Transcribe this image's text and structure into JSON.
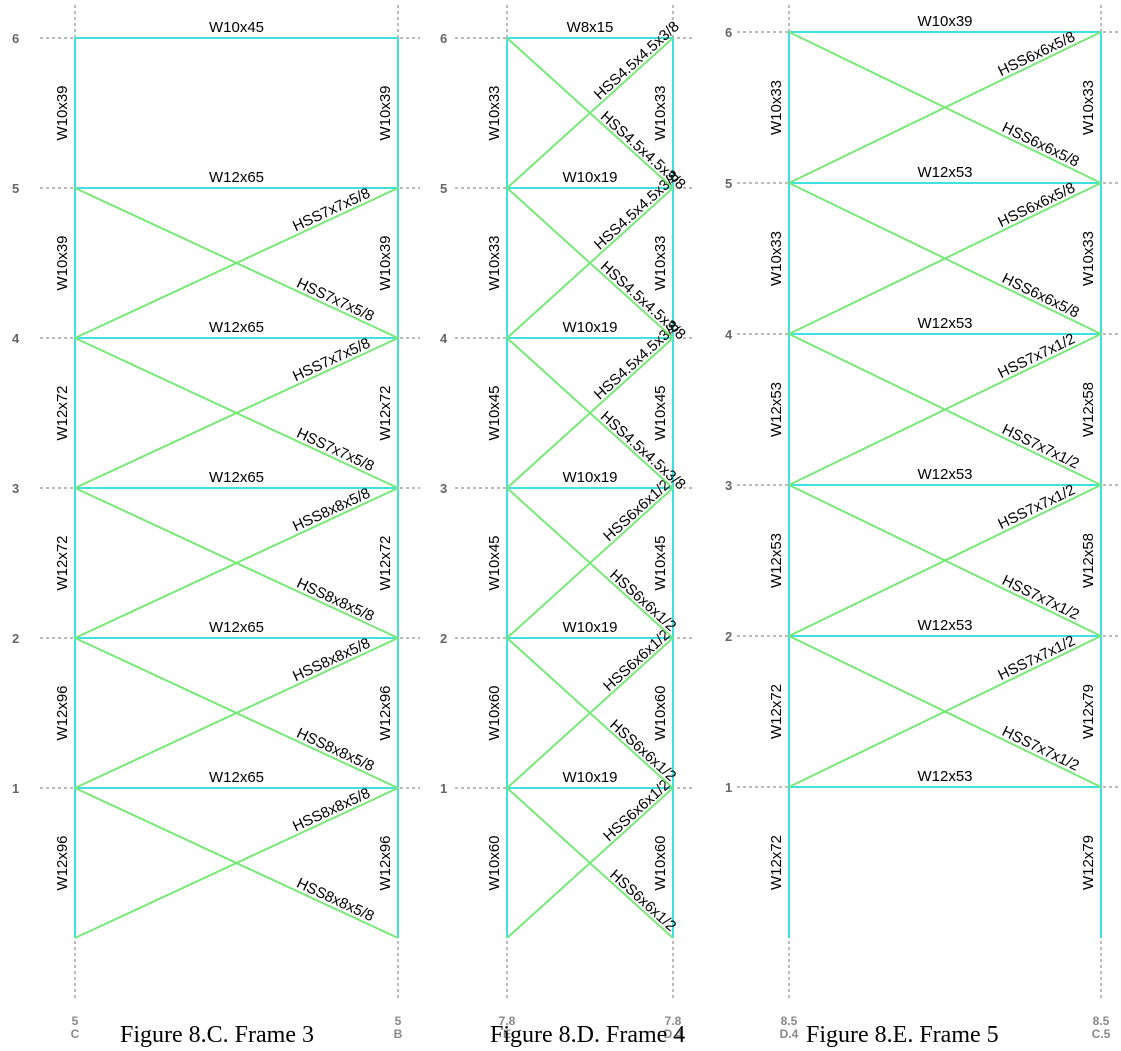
{
  "colors": {
    "column": "#40e0e0",
    "beam": "#40e0e0",
    "brace": "#78e878",
    "grid": "#777777",
    "label": "#000000"
  },
  "frames": [
    {
      "caption": "Figure 8.C.  Frame 3",
      "grid_left": [
        "5",
        "C"
      ],
      "grid_right": [
        "5",
        "B"
      ],
      "level_labels": [
        "1",
        "2",
        "3",
        "4",
        "5",
        "6"
      ],
      "beams": [
        "W12x65",
        "W12x65",
        "W12x65",
        "W12x65",
        "W12x65",
        "W10x45"
      ],
      "columns_left": [
        "W12x96",
        "W12x96",
        "W12x72",
        "W12x72",
        "W10x39",
        "W10x39"
      ],
      "columns_right": [
        "W12x96",
        "W12x96",
        "W12x72",
        "W12x72",
        "W10x39",
        "W10x39"
      ],
      "braces_up": [
        "HSS8x8x5/8",
        "HSS8x8x5/8",
        "HSS8x8x5/8",
        "HSS7x7x5/8",
        "HSS7x7x5/8",
        ""
      ],
      "braces_down": [
        "HSS8x8x5/8",
        "HSS8x8x5/8",
        "HSS8x8x5/8",
        "HSS7x7x5/8",
        "HSS7x7x5/8",
        ""
      ]
    },
    {
      "caption": "Figure 8.D.  Frame 4",
      "grid_left": [
        "7.8",
        "E"
      ],
      "grid_right": [
        "7.8",
        "D.4"
      ],
      "level_labels": [
        "1",
        "2",
        "3",
        "4",
        "5",
        "6"
      ],
      "beams": [
        "W10x19",
        "W10x19",
        "W10x19",
        "W10x19",
        "W10x19",
        "W8x15"
      ],
      "columns_left": [
        "W10x60",
        "W10x60",
        "W10x45",
        "W10x45",
        "W10x33",
        "W10x33"
      ],
      "columns_right": [
        "W10x60",
        "W10x60",
        "W10x45",
        "W10x45",
        "W10x33",
        "W10x33"
      ],
      "braces_up": [
        "HSS6x6x1/2",
        "HSS6x6x1/2",
        "HSS6x6x1/2",
        "HSS4.5x4.5x3/8",
        "HSS4.5x4.5x3/8",
        "HSS4.5x4.5x3/8"
      ],
      "braces_down": [
        "HSS6x6x1/2",
        "HSS6x6x1/2",
        "HSS6x6x1/2",
        "HSS4.5x4.5x3/8",
        "HSS4.5x4.5x3/8",
        "HSS4.5x4.5x3/8"
      ]
    },
    {
      "caption": "Figure 8.E.  Frame 5",
      "grid_left": [
        "8.5",
        "D.4"
      ],
      "grid_right": [
        "8.5",
        "C.5"
      ],
      "level_labels": [
        "1",
        "2",
        "3",
        "4",
        "5",
        "6"
      ],
      "beams": [
        "W12x53",
        "W12x53",
        "W12x53",
        "W12x53",
        "W12x53",
        "W10x39"
      ],
      "columns_left": [
        "W12x72",
        "W12x72",
        "W12x53",
        "W12x53",
        "W10x33",
        "W10x33"
      ],
      "columns_right": [
        "W12x79",
        "W12x79",
        "W12x58",
        "W12x58",
        "W10x33",
        "W10x33"
      ],
      "braces_up": [
        "",
        "HSS7x7x1/2",
        "HSS7x7x1/2",
        "HSS7x7x1/2",
        "HSS6x6x5/8",
        "HSS6x6x5/8"
      ],
      "braces_down": [
        "",
        "HSS7x7x1/2",
        "HSS7x7x1/2",
        "HSS7x7x1/2",
        "HSS6x6x5/8",
        "HSS6x6x5/8"
      ]
    }
  ]
}
